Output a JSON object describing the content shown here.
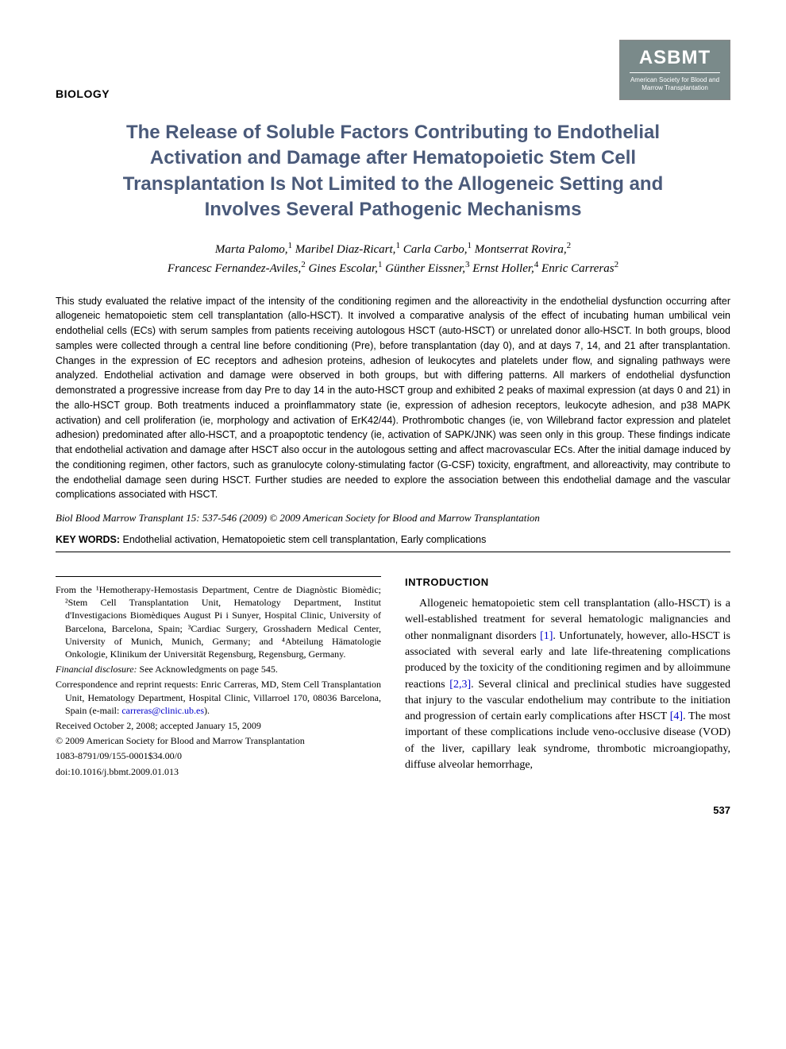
{
  "header": {
    "section_label": "BIOLOGY",
    "logo_main": "ASBMT",
    "logo_sub": "American Society for Blood and Marrow Transplantation"
  },
  "title": "The Release of Soluble Factors Contributing to Endothelial Activation and Damage after Hematopoietic Stem Cell Transplantation Is Not Limited to the Allogeneic Setting and Involves Several Pathogenic Mechanisms",
  "authors_html": "Marta Palomo,<sup>1</sup> Maribel Diaz-Ricart,<sup>1</sup> Carla Carbo,<sup>1</sup> Montserrat Rovira,<sup>2</sup><br>Francesc Fernandez-Aviles,<sup>2</sup> Gines Escolar,<sup>1</sup> Günther Eissner,<sup>3</sup> Ernst Holler,<sup>4</sup> Enric Carreras<sup>2</sup>",
  "abstract": "This study evaluated the relative impact of the intensity of the conditioning regimen and the alloreactivity in the endothelial dysfunction occurring after allogeneic hematopoietic stem cell transplantation (allo-HSCT). It involved a comparative analysis of the effect of incubating human umbilical vein endothelial cells (ECs) with serum samples from patients receiving autologous HSCT (auto-HSCT) or unrelated donor allo-HSCT. In both groups, blood samples were collected through a central line before conditioning (Pre), before transplantation (day 0), and at days 7, 14, and 21 after transplantation. Changes in the expression of EC receptors and adhesion proteins, adhesion of leukocytes and platelets under flow, and signaling pathways were analyzed. Endothelial activation and damage were observed in both groups, but with differing patterns. All markers of endothelial dysfunction demonstrated a progressive increase from day Pre to day 14 in the auto-HSCT group and exhibited 2 peaks of maximal expression (at days 0 and 21) in the allo-HSCT group. Both treatments induced a proinflammatory state (ie, expression of adhesion receptors, leukocyte adhesion, and p38 MAPK activation) and cell proliferation (ie, morphology and activation of ErK42/44). Prothrombotic changes (ie, von Willebrand factor expression and platelet adhesion) predominated after allo-HSCT, and a proapoptotic tendency (ie, activation of SAPK/JNK) was seen only in this group. These findings indicate that endothelial activation and damage after HSCT also occur in the autologous setting and affect macrovascular ECs. After the initial damage induced by the conditioning regimen, other factors, such as granulocyte colony-stimulating factor (G-CSF) toxicity, engraftment, and alloreactivity, may contribute to the endothelial damage seen during HSCT. Further studies are needed to explore the association between this endothelial damage and the vascular complications associated with HSCT.",
  "citation": "Biol Blood Marrow Transplant 15: 537-546 (2009) © 2009 American Society for Blood and Marrow Transplantation",
  "keywords_label": "KEY WORDS:",
  "keywords": "Endothelial activation, Hematopoietic stem cell transplantation, Early complications",
  "affiliations": {
    "from": "From the ¹Hemotherapy-Hemostasis Department, Centre de Diagnòstic Biomèdic; ²Stem Cell Transplantation Unit, Hematology Department, Institut d'Investigacions Biomèdiques August Pi i Sunyer, Hospital Clinic, University of Barcelona, Barcelona, Spain; ³Cardiac Surgery, Grosshadern Medical Center, University of Munich, Munich, Germany; and ⁴Abteilung Hämatologie Onkologie, Klinikum der Universität Regensburg, Regensburg, Germany.",
    "financial_label": "Financial disclosure:",
    "financial": " See Acknowledgments on page 545.",
    "correspondence": "Correspondence and reprint requests: Enric Carreras, MD, Stem Cell Transplantation Unit, Hematology Department, Hospital Clinic, Villarroel 170, 08036 Barcelona, Spain (e-mail: ",
    "email": "carreras@clinic.ub.es",
    "correspondence_end": ").",
    "received": "Received October 2, 2008; accepted January 15, 2009",
    "copyright": "© 2009 American Society for Blood and Marrow Transplantation",
    "issn": "1083-8791/09/155-0001$34.00/0",
    "doi": "doi:10.1016/j.bbmt.2009.01.013"
  },
  "introduction": {
    "heading": "INTRODUCTION",
    "text_parts": [
      "Allogeneic hematopoietic stem cell transplantation (allo-HSCT) is a well-established treatment for several hematologic malignancies and other nonmalignant disorders ",
      ". Unfortunately, however, allo-HSCT is associated with several early and late life-threatening complications produced by the toxicity of the conditioning regimen and by alloimmune reactions ",
      ". Several clinical and preclinical studies have suggested that injury to the vascular endothelium may contribute to the initiation and progression of certain early complications after HSCT ",
      ". The most important of these complications include veno-occlusive disease (VOD) of the liver, capillary leak syndrome, thrombotic microangiopathy, diffuse alveolar hemorrhage,"
    ],
    "refs": [
      "[1]",
      "[2,3]",
      "[4]"
    ]
  },
  "page_number": "537",
  "colors": {
    "title_color": "#4a5a7a",
    "link_color": "#0000cc",
    "logo_bg": "#7a8a8a"
  }
}
